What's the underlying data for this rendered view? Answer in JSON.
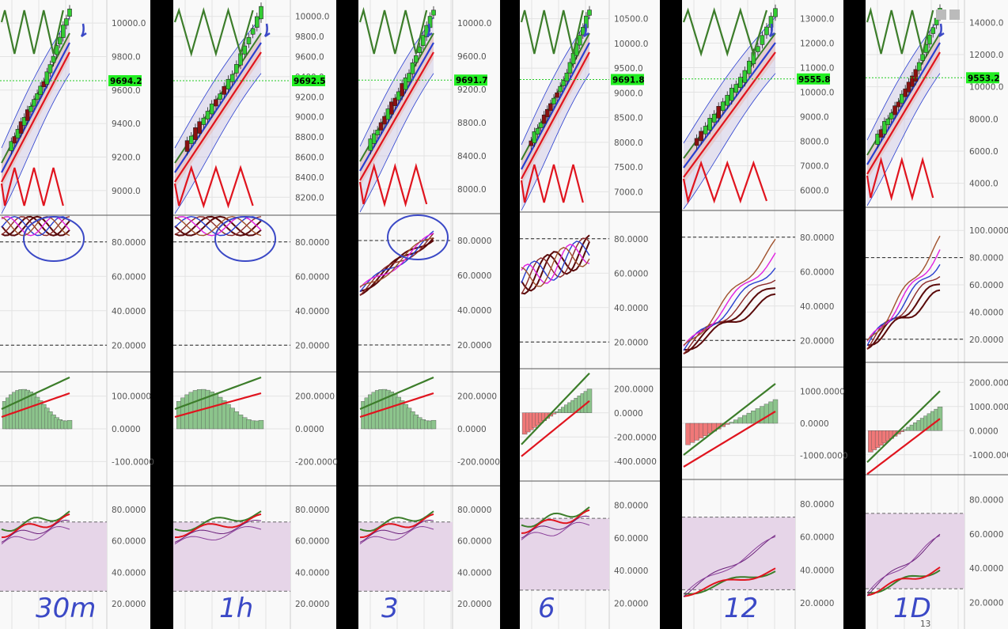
{
  "chart_data": [
    {
      "type": "line",
      "timeframe_note": "30m",
      "price_tag": "9694.2",
      "price_ticks": [
        "10000.0",
        "9800.0",
        "9600.0",
        "9400.0",
        "9200.0",
        "9000.0"
      ],
      "stoch_ticks": [
        "80.0000",
        "60.0000",
        "40.0000",
        "20.0000"
      ],
      "macd_ticks": [
        "100.0000",
        "0.0000",
        "-100.0000"
      ],
      "rsi_ticks": [
        "80.0000",
        "60.0000",
        "40.0000",
        "20.0000"
      ],
      "x_ticks": []
    },
    {
      "type": "line",
      "timeframe_note": "1h",
      "price_tag": "9692.5",
      "price_ticks": [
        "10000.0",
        "9800.0",
        "9600.0",
        "9400.0",
        "9200.0",
        "9000.0",
        "8800.0",
        "8600.0",
        "8400.0",
        "8200.0"
      ],
      "stoch_ticks": [
        "80.0000",
        "60.0000",
        "40.0000",
        "20.0000"
      ],
      "macd_ticks": [
        "200.0000",
        "0.0000",
        "-200.0000"
      ],
      "rsi_ticks": [
        "80.0000",
        "60.0000",
        "40.0000",
        "20.0000"
      ],
      "x_ticks": []
    },
    {
      "type": "line",
      "timeframe_note": "3",
      "price_tag": "9691.7",
      "price_ticks": [
        "10000.0",
        "9600.0",
        "9200.0",
        "8800.0",
        "8400.0",
        "8000.0"
      ],
      "stoch_ticks": [
        "80.0000",
        "60.0000",
        "40.0000",
        "20.0000"
      ],
      "macd_ticks": [
        "200.0000",
        "0.0000",
        "-200.0000"
      ],
      "rsi_ticks": [
        "80.0000",
        "60.0000",
        "40.0000",
        "20.0000"
      ],
      "x_ticks": []
    },
    {
      "type": "line",
      "timeframe_note": "6",
      "price_tag": "9691.8",
      "price_ticks": [
        "10500.0",
        "10000.0",
        "9500.0",
        "9000.0",
        "8500.0",
        "8000.0",
        "7500.0",
        "7000.0"
      ],
      "stoch_ticks": [
        "80.0000",
        "60.0000",
        "40.0000",
        "20.0000"
      ],
      "macd_ticks": [
        "200.0000",
        "0.0000",
        "-200.0000",
        "-400.0000"
      ],
      "rsi_ticks": [
        "80.0000",
        "60.0000",
        "40.0000",
        "20.0000"
      ],
      "x_ticks": []
    },
    {
      "type": "line",
      "timeframe_note": "12",
      "price_tag": "9555.8",
      "price_ticks": [
        "13000.0",
        "12000.0",
        "11000.0",
        "10000.0",
        "9000.0",
        "8000.0",
        "7000.0",
        "6000.0"
      ],
      "stoch_ticks": [
        "80.0000",
        "60.0000",
        "40.0000",
        "20.0000"
      ],
      "macd_ticks": [
        "1000.0000",
        "0.0000",
        "-1000.0000"
      ],
      "rsi_ticks": [
        "80.0000",
        "60.0000",
        "40.0000",
        "20.0000"
      ],
      "x_ticks": []
    },
    {
      "type": "line",
      "timeframe_note": "1D",
      "price_tag": "9553.2",
      "price_ticks": [
        "14000.0",
        "12000.0",
        "10000.0",
        "8000.0",
        "6000.0",
        "4000.0"
      ],
      "stoch_ticks": [
        "100.0000",
        "80.0000",
        "60.0000",
        "40.0000",
        "20.0000"
      ],
      "macd_ticks": [
        "2000.0000",
        "1000.0000",
        "0.0000",
        "-1000.0000"
      ],
      "rsi_ticks": [
        "80.0000",
        "60.0000",
        "40.0000",
        "20.0000"
      ],
      "x_ticks": [
        "13"
      ]
    }
  ],
  "hand_labels": [
    "30m",
    "1h",
    "3",
    "6",
    "12",
    "1D"
  ],
  "colors": {
    "panel_bg": "#f9f9f9",
    "grid": "#e3e3e3",
    "bull": "#33cc33",
    "bear": "#8b1010",
    "ma_red": "#e0141e",
    "ma_green": "#3c7d2a",
    "ma_blue": "#2a3fd0",
    "band_fill": "#c9c3e3",
    "stoch_dark": "#5a0a0a",
    "stoch_magenta": "#e020e0",
    "hist_green": "#8cc48c",
    "hist_red": "#f07878",
    "rsi_band": "#e6d5e8",
    "price_tag_bg": "#22ee22",
    "ink": "#3b49c6"
  }
}
